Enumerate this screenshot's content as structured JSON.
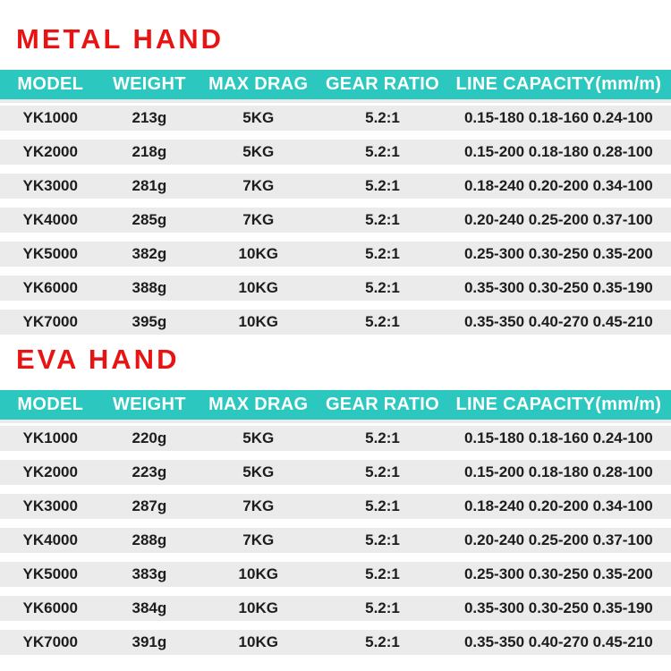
{
  "colors": {
    "title_red": "#e81414",
    "header_teal": "#2cc8c0",
    "header_text": "#ffffff",
    "row_bg": "#ebebeb",
    "row_text": "#1d1d1d",
    "page_bg": "#ffffff"
  },
  "tables": [
    {
      "title": "METAL HAND",
      "columns": [
        "MODEL",
        "WEIGHT",
        "MAX DRAG",
        "GEAR RATIO",
        "LINE CAPACITY(mm/m)"
      ],
      "rows": [
        [
          "YK1000",
          "213g",
          "5KG",
          "5.2:1",
          "0.15-180 0.18-160 0.24-100"
        ],
        [
          "YK2000",
          "218g",
          "5KG",
          "5.2:1",
          "0.15-200 0.18-180 0.28-100"
        ],
        [
          "YK3000",
          "281g",
          "7KG",
          "5.2:1",
          "0.18-240 0.20-200 0.34-100"
        ],
        [
          "YK4000",
          "285g",
          "7KG",
          "5.2:1",
          "0.20-240 0.25-200 0.37-100"
        ],
        [
          "YK5000",
          "382g",
          "10KG",
          "5.2:1",
          "0.25-300 0.30-250 0.35-200"
        ],
        [
          "YK6000",
          "388g",
          "10KG",
          "5.2:1",
          "0.35-300 0.30-250 0.35-190"
        ],
        [
          "YK7000",
          "395g",
          "10KG",
          "5.2:1",
          "0.35-350 0.40-270 0.45-210"
        ]
      ]
    },
    {
      "title": "EVA HAND",
      "columns": [
        "MODEL",
        "WEIGHT",
        "MAX DRAG",
        "GEAR RATIO",
        "LINE CAPACITY(mm/m)"
      ],
      "rows": [
        [
          "YK1000",
          "220g",
          "5KG",
          "5.2:1",
          "0.15-180 0.18-160 0.24-100"
        ],
        [
          "YK2000",
          "223g",
          "5KG",
          "5.2:1",
          "0.15-200 0.18-180 0.28-100"
        ],
        [
          "YK3000",
          "287g",
          "7KG",
          "5.2:1",
          "0.18-240 0.20-200 0.34-100"
        ],
        [
          "YK4000",
          "288g",
          "7KG",
          "5.2:1",
          "0.20-240 0.25-200 0.37-100"
        ],
        [
          "YK5000",
          "383g",
          "10KG",
          "5.2:1",
          "0.25-300 0.30-250 0.35-200"
        ],
        [
          "YK6000",
          "384g",
          "10KG",
          "5.2:1",
          "0.35-300 0.30-250 0.35-190"
        ],
        [
          "YK7000",
          "391g",
          "10KG",
          "5.2:1",
          "0.35-350 0.40-270 0.45-210"
        ]
      ]
    }
  ]
}
